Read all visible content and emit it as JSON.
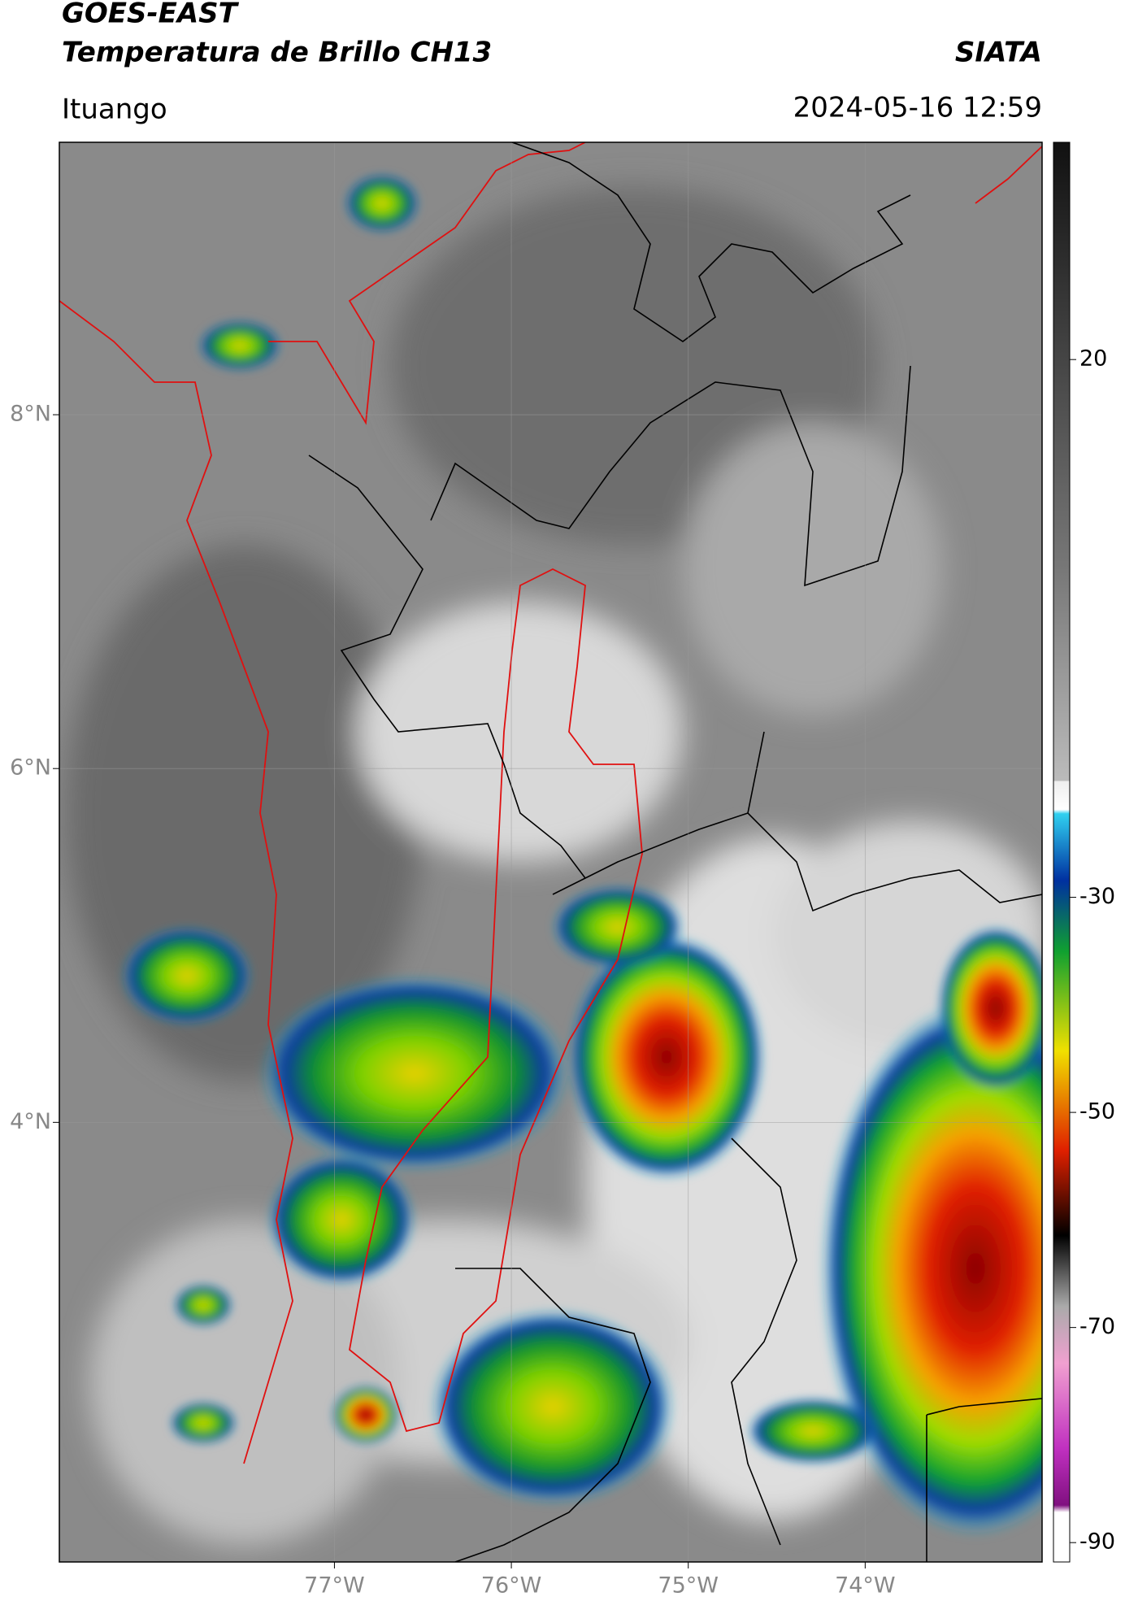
{
  "header": {
    "title": "GOES-EAST",
    "subtitle": "Temperatura de Brillo CH13",
    "brand": "SIATA",
    "place": "Ituango",
    "datetime": "2024-05-16 12:59"
  },
  "map": {
    "xlim": [
      -78.555,
      -73.0
    ],
    "ylim": [
      1.515,
      9.54
    ],
    "xticks": [
      {
        "value": -77,
        "label": "77°W"
      },
      {
        "value": -76,
        "label": "76°W"
      },
      {
        "value": -75,
        "label": "75°W"
      },
      {
        "value": -74,
        "label": "74°W"
      }
    ],
    "yticks": [
      {
        "value": 4,
        "label": "4°N"
      },
      {
        "value": 6,
        "label": "6°N"
      },
      {
        "value": 8,
        "label": "8°N"
      }
    ],
    "grid": true
  },
  "colorbar": {
    "lim": [
      -91.8,
      40.2
    ],
    "ticks": [
      20,
      -30,
      -50,
      -70,
      -90
    ]
  }
}
